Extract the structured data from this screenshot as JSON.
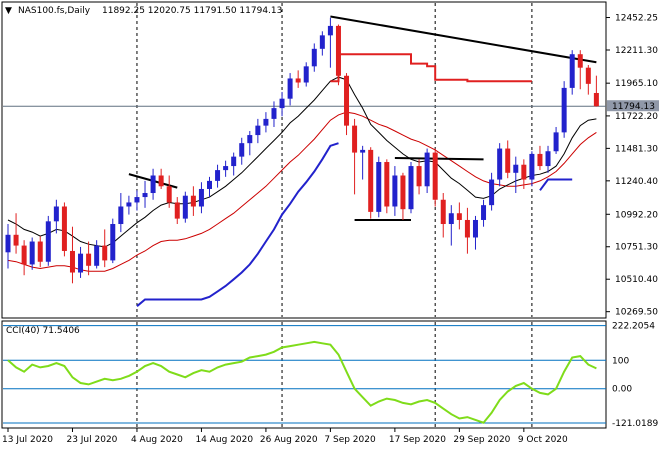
{
  "header": {
    "symbol_label": "NAS100.fs,Daily",
    "ohlc_label": "11892.25 12020.75 11791.50 11794.13",
    "collapse_glyph": "▼"
  },
  "indicator": {
    "label": "CCI(40) 71.5406",
    "scale_labels": [
      "222.2054",
      "100",
      "0.00",
      "-121.0189"
    ],
    "levels": [
      222.2054,
      100,
      0,
      -121.0189
    ]
  },
  "colors": {
    "bull": "#2222cc",
    "bear": "#e02020",
    "ma_fast": "#000000",
    "ma_slow": "#cc0000",
    "trendline": "#000000",
    "cci": "#7fdc1a",
    "level_line": "#0070c0",
    "price_line": "#607080",
    "price_badge_bg": "#9098a8"
  },
  "chart_data": [
    {
      "type": "candlestick",
      "title": "NAS100.fs,Daily",
      "price_axis_ticks": [
        12452.25,
        12211.3,
        11965.1,
        11722.2,
        11481.3,
        11240.4,
        10992.2,
        10751.3,
        10510.4,
        10269.5
      ],
      "price_axis_labels": [
        "12452.25",
        "12211.30",
        "11965.10",
        "11722.20",
        "11481.30",
        "11240.40",
        "10992.20",
        "10751.30",
        "10510.40",
        "10269.50"
      ],
      "current_price": 11794.13,
      "current_price_label": "11794.13",
      "ylim": [
        10230,
        12560
      ],
      "date_labels": [
        "13 Jul 2020",
        "23 Jul 2020",
        "4 Aug 2020",
        "14 Aug 2020",
        "26 Aug 2020",
        "7 Sep 2020",
        "17 Sep 2020",
        "29 Sep 2020",
        "9 Oct 2020"
      ],
      "date_label_index": [
        0,
        8,
        16,
        24,
        32,
        40,
        48,
        56,
        64
      ],
      "vline_index": [
        16,
        34,
        53,
        65
      ],
      "candles": [
        [
          10710,
          10920,
          10590,
          10840
        ],
        [
          10840,
          11000,
          10700,
          10760
        ],
        [
          10760,
          10800,
          10540,
          10620
        ],
        [
          10620,
          10820,
          10580,
          10790
        ],
        [
          10790,
          10830,
          10600,
          10640
        ],
        [
          10640,
          10980,
          10610,
          10940
        ],
        [
          10940,
          11100,
          10850,
          11050
        ],
        [
          11050,
          11080,
          10680,
          10720
        ],
        [
          10720,
          10900,
          10480,
          10560
        ],
        [
          10560,
          10750,
          10520,
          10700
        ],
        [
          10700,
          10790,
          10540,
          10610
        ],
        [
          10610,
          10800,
          10590,
          10760
        ],
        [
          10760,
          10880,
          10600,
          10650
        ],
        [
          10650,
          10960,
          10630,
          10920
        ],
        [
          10920,
          11150,
          10860,
          11050
        ],
        [
          11050,
          11130,
          10990,
          11080
        ],
        [
          11080,
          11170,
          11020,
          11120
        ],
        [
          11120,
          11240,
          11040,
          11150
        ],
        [
          11150,
          11330,
          11100,
          11280
        ],
        [
          11280,
          11330,
          11180,
          11200
        ],
        [
          11200,
          11280,
          11040,
          11080
        ],
        [
          11080,
          11120,
          10920,
          10960
        ],
        [
          10960,
          11160,
          10930,
          11130
        ],
        [
          11130,
          11200,
          10980,
          11050
        ],
        [
          11050,
          11230,
          11000,
          11180
        ],
        [
          11180,
          11270,
          11120,
          11240
        ],
        [
          11240,
          11360,
          11190,
          11320
        ],
        [
          11320,
          11390,
          11270,
          11350
        ],
        [
          11350,
          11450,
          11280,
          11420
        ],
        [
          11420,
          11560,
          11360,
          11520
        ],
        [
          11520,
          11610,
          11430,
          11580
        ],
        [
          11580,
          11700,
          11520,
          11650
        ],
        [
          11650,
          11750,
          11600,
          11700
        ],
        [
          11700,
          11830,
          11640,
          11780
        ],
        [
          11780,
          11900,
          11720,
          11850
        ],
        [
          11850,
          12040,
          11800,
          12000
        ],
        [
          12000,
          12060,
          11930,
          11970
        ],
        [
          11970,
          12120,
          11940,
          12090
        ],
        [
          12090,
          12260,
          12050,
          12220
        ],
        [
          12220,
          12350,
          12170,
          12320
        ],
        [
          12320,
          12450,
          12080,
          12390
        ],
        [
          12390,
          12400,
          11950,
          12020
        ],
        [
          12020,
          12040,
          11580,
          11650
        ],
        [
          11650,
          11700,
          11140,
          11450
        ],
        [
          11450,
          11500,
          11250,
          11470
        ],
        [
          11470,
          11490,
          10960,
          11010
        ],
        [
          11010,
          11420,
          10970,
          11380
        ],
        [
          11380,
          11400,
          11000,
          11050
        ],
        [
          11050,
          11350,
          10980,
          11280
        ],
        [
          11280,
          11300,
          10950,
          11030
        ],
        [
          11030,
          11380,
          11000,
          11350
        ],
        [
          11350,
          11400,
          11140,
          11200
        ],
        [
          11200,
          11480,
          11150,
          11450
        ],
        [
          11450,
          11480,
          11050,
          11100
        ],
        [
          11100,
          11150,
          10820,
          10920
        ],
        [
          10920,
          11060,
          10760,
          11000
        ],
        [
          11000,
          11080,
          10880,
          10950
        ],
        [
          10950,
          11040,
          10700,
          10820
        ],
        [
          10820,
          10980,
          10730,
          10950
        ],
        [
          10950,
          11100,
          10900,
          11060
        ],
        [
          11060,
          11300,
          11020,
          11250
        ],
        [
          11250,
          11520,
          11200,
          11480
        ],
        [
          11480,
          11540,
          11260,
          11300
        ],
        [
          11300,
          11420,
          11150,
          11360
        ],
        [
          11360,
          11400,
          11180,
          11250
        ],
        [
          11250,
          11460,
          11200,
          11440
        ],
        [
          11440,
          11500,
          11320,
          11350
        ],
        [
          11350,
          11500,
          11300,
          11460
        ],
        [
          11460,
          11640,
          11440,
          11600
        ],
        [
          11600,
          11980,
          11560,
          11930
        ],
        [
          11930,
          12210,
          11880,
          12180
        ],
        [
          12180,
          12210,
          11920,
          12080
        ],
        [
          12080,
          12100,
          11880,
          11960
        ],
        [
          11892.25,
          12020.75,
          11791.5,
          11794.13
        ]
      ],
      "ma_fast": [
        10950,
        10920,
        10880,
        10860,
        10830,
        10850,
        10880,
        10870,
        10830,
        10790,
        10770,
        10760,
        10750,
        10780,
        10830,
        10880,
        10930,
        10970,
        11020,
        11060,
        11080,
        11070,
        11070,
        11080,
        11100,
        11120,
        11160,
        11200,
        11250,
        11300,
        11360,
        11420,
        11480,
        11540,
        11600,
        11670,
        11720,
        11780,
        11840,
        11910,
        11980,
        12010,
        11990,
        11880,
        11780,
        11660,
        11600,
        11540,
        11490,
        11440,
        11400,
        11380,
        11390,
        11380,
        11320,
        11260,
        11220,
        11170,
        11120,
        11110,
        11130,
        11180,
        11210,
        11240,
        11260,
        11280,
        11290,
        11310,
        11350,
        11440,
        11560,
        11650,
        11690,
        11700
      ],
      "ma_slow": [
        10650,
        10640,
        10620,
        10600,
        10590,
        10600,
        10610,
        10610,
        10600,
        10580,
        10570,
        10570,
        10570,
        10590,
        10620,
        10650,
        10690,
        10720,
        10760,
        10790,
        10800,
        10800,
        10810,
        10830,
        10850,
        10880,
        10920,
        10960,
        11000,
        11050,
        11100,
        11150,
        11200,
        11260,
        11320,
        11380,
        11430,
        11490,
        11550,
        11620,
        11690,
        11730,
        11750,
        11740,
        11720,
        11690,
        11660,
        11640,
        11610,
        11580,
        11550,
        11530,
        11500,
        11470,
        11430,
        11390,
        11350,
        11310,
        11270,
        11240,
        11220,
        11210,
        11200,
        11200,
        11210,
        11220,
        11240,
        11270,
        11310,
        11370,
        11440,
        11510,
        11560,
        11600
      ],
      "blue_line": [
        [
          16,
          10310
        ],
        [
          17,
          10360
        ],
        [
          24,
          10360
        ],
        [
          25,
          10380
        ],
        [
          26,
          10420
        ],
        [
          27,
          10460
        ],
        [
          28,
          10510
        ],
        [
          29,
          10560
        ],
        [
          30,
          10620
        ],
        [
          31,
          10700
        ],
        [
          32,
          10790
        ],
        [
          33,
          10880
        ],
        [
          34,
          10990
        ],
        [
          35,
          11070
        ],
        [
          36,
          11160
        ],
        [
          37,
          11230
        ],
        [
          38,
          11310
        ],
        [
          39,
          11400
        ],
        [
          40,
          11500
        ],
        [
          41,
          11520
        ],
        [
          41,
          11520
        ],
        null,
        [
          66,
          11170
        ],
        [
          67,
          11250
        ],
        [
          70,
          11250
        ]
      ],
      "red_step": [
        [
          40,
          11980
        ],
        [
          41,
          12180
        ],
        [
          49,
          12180
        ],
        [
          50,
          12110
        ],
        [
          52,
          12090
        ],
        [
          53,
          11990
        ],
        [
          57,
          11980
        ],
        [
          65,
          11980
        ]
      ],
      "trendlines": [
        [
          [
            15,
            11290
          ],
          [
            21,
            11190
          ]
        ],
        [
          [
            40,
            12460
          ],
          [
            73,
            12120
          ]
        ],
        [
          [
            48,
            11410
          ],
          [
            59,
            11400
          ]
        ],
        [
          [
            43,
            10950
          ],
          [
            50,
            10950
          ]
        ]
      ],
      "cci_series": [
        100,
        75,
        60,
        85,
        75,
        80,
        90,
        80,
        40,
        20,
        15,
        25,
        35,
        30,
        35,
        45,
        60,
        80,
        90,
        80,
        60,
        50,
        40,
        55,
        65,
        60,
        75,
        85,
        90,
        95,
        110,
        115,
        120,
        130,
        145,
        150,
        155,
        160,
        165,
        160,
        155,
        120,
        60,
        0,
        -30,
        -60,
        -45,
        -35,
        -40,
        -50,
        -55,
        -45,
        -40,
        -50,
        -70,
        -90,
        -105,
        -100,
        -110,
        -120,
        -85,
        -40,
        -10,
        10,
        20,
        0,
        -15,
        -20,
        0,
        60,
        110,
        115,
        85,
        71.5406
      ]
    }
  ]
}
